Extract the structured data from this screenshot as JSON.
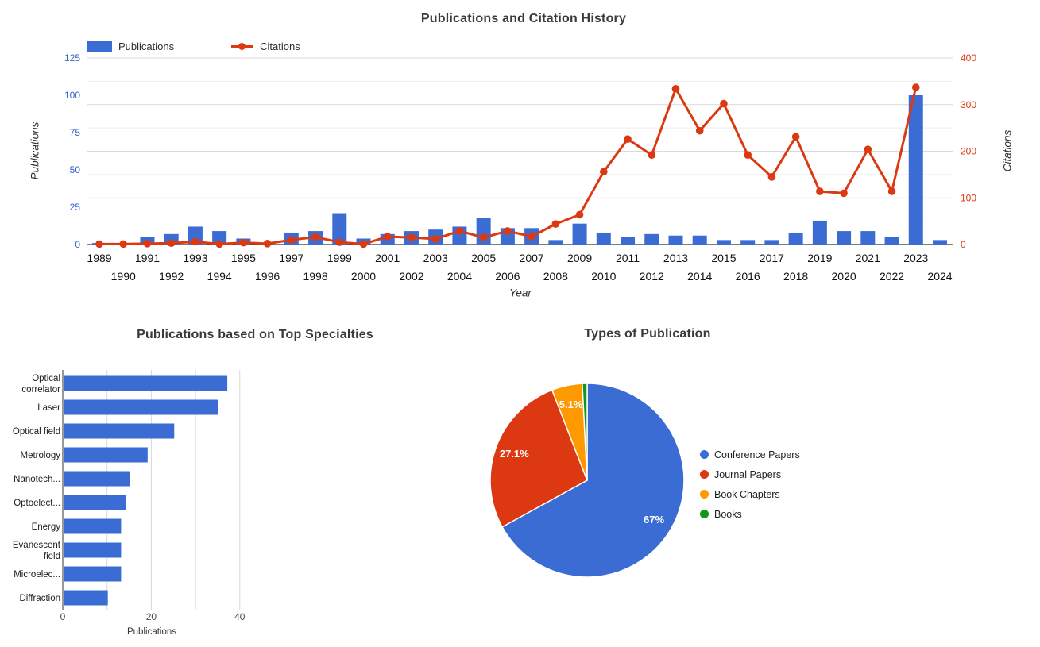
{
  "chart_data": [
    {
      "type": "combo-bar-line",
      "title": "Publications and Citation History",
      "xlabel": "Year",
      "years": [
        1989,
        1990,
        1991,
        1992,
        1993,
        1994,
        1995,
        1996,
        1997,
        1998,
        1999,
        2000,
        2001,
        2002,
        2003,
        2004,
        2005,
        2006,
        2007,
        2008,
        2009,
        2010,
        2011,
        2012,
        2013,
        2014,
        2015,
        2016,
        2017,
        2018,
        2019,
        2020,
        2021,
        2022,
        2023,
        2024
      ],
      "series": [
        {
          "name": "Publications",
          "kind": "bar",
          "axis": "left",
          "color": "#3b6cd4",
          "values": [
            1,
            0,
            5,
            7,
            12,
            9,
            4,
            0,
            8,
            9,
            21,
            4,
            7,
            9,
            10,
            12,
            18,
            11,
            11,
            3,
            14,
            8,
            5,
            7,
            6,
            6,
            3,
            3,
            3,
            8,
            16,
            9,
            9,
            5,
            100,
            3
          ]
        },
        {
          "name": "Citations",
          "kind": "line",
          "axis": "right",
          "color": "#dc3912",
          "values": [
            1,
            1,
            2,
            3,
            6,
            1,
            4,
            2,
            10,
            16,
            5,
            1,
            17,
            15,
            12,
            29,
            15,
            29,
            17,
            44,
            64,
            156,
            226,
            192,
            334,
            244,
            302,
            192,
            145,
            231,
            114,
            110,
            204,
            114,
            337,
            null
          ]
        }
      ],
      "left_axis": {
        "title": "Publications",
        "ticks": [
          0,
          25,
          50,
          75,
          100,
          125
        ],
        "max": 125,
        "color": "#3366cc"
      },
      "right_axis": {
        "title": "Citations",
        "ticks": [
          0,
          100,
          200,
          300,
          400
        ],
        "max": 400,
        "color": "#dc3912"
      },
      "legend_position": "top-left",
      "grid": true
    },
    {
      "type": "bar",
      "orientation": "horizontal",
      "title": "Publications based on Top Specialties",
      "xlabel": "Publications",
      "categories": [
        "Optical correlator",
        "Laser",
        "Optical field",
        "Metrology",
        "Nanotech...",
        "Optoelect...",
        "Energy",
        "Evanescent field",
        "Microelec...",
        "Diffraction"
      ],
      "values": [
        37,
        35,
        25,
        19,
        15,
        14,
        13,
        13,
        13,
        10
      ],
      "xticks": [
        0,
        20,
        40
      ],
      "gridline_step": 10,
      "xlim": [
        0,
        44
      ],
      "color": "#3b6cd4"
    },
    {
      "type": "pie",
      "title": "Types of Publication",
      "legend_position": "right",
      "slices": [
        {
          "label": "Conference Papers",
          "value": 67.0,
          "display": "67%",
          "color": "#3b6cd4"
        },
        {
          "label": "Journal Papers",
          "value": 27.1,
          "display": "27.1%",
          "color": "#dc3912"
        },
        {
          "label": "Book Chapters",
          "value": 5.1,
          "display": "5.1%",
          "color": "#ff9900"
        },
        {
          "label": "Books",
          "value": 0.8,
          "display": "",
          "color": "#109618"
        }
      ]
    }
  ]
}
